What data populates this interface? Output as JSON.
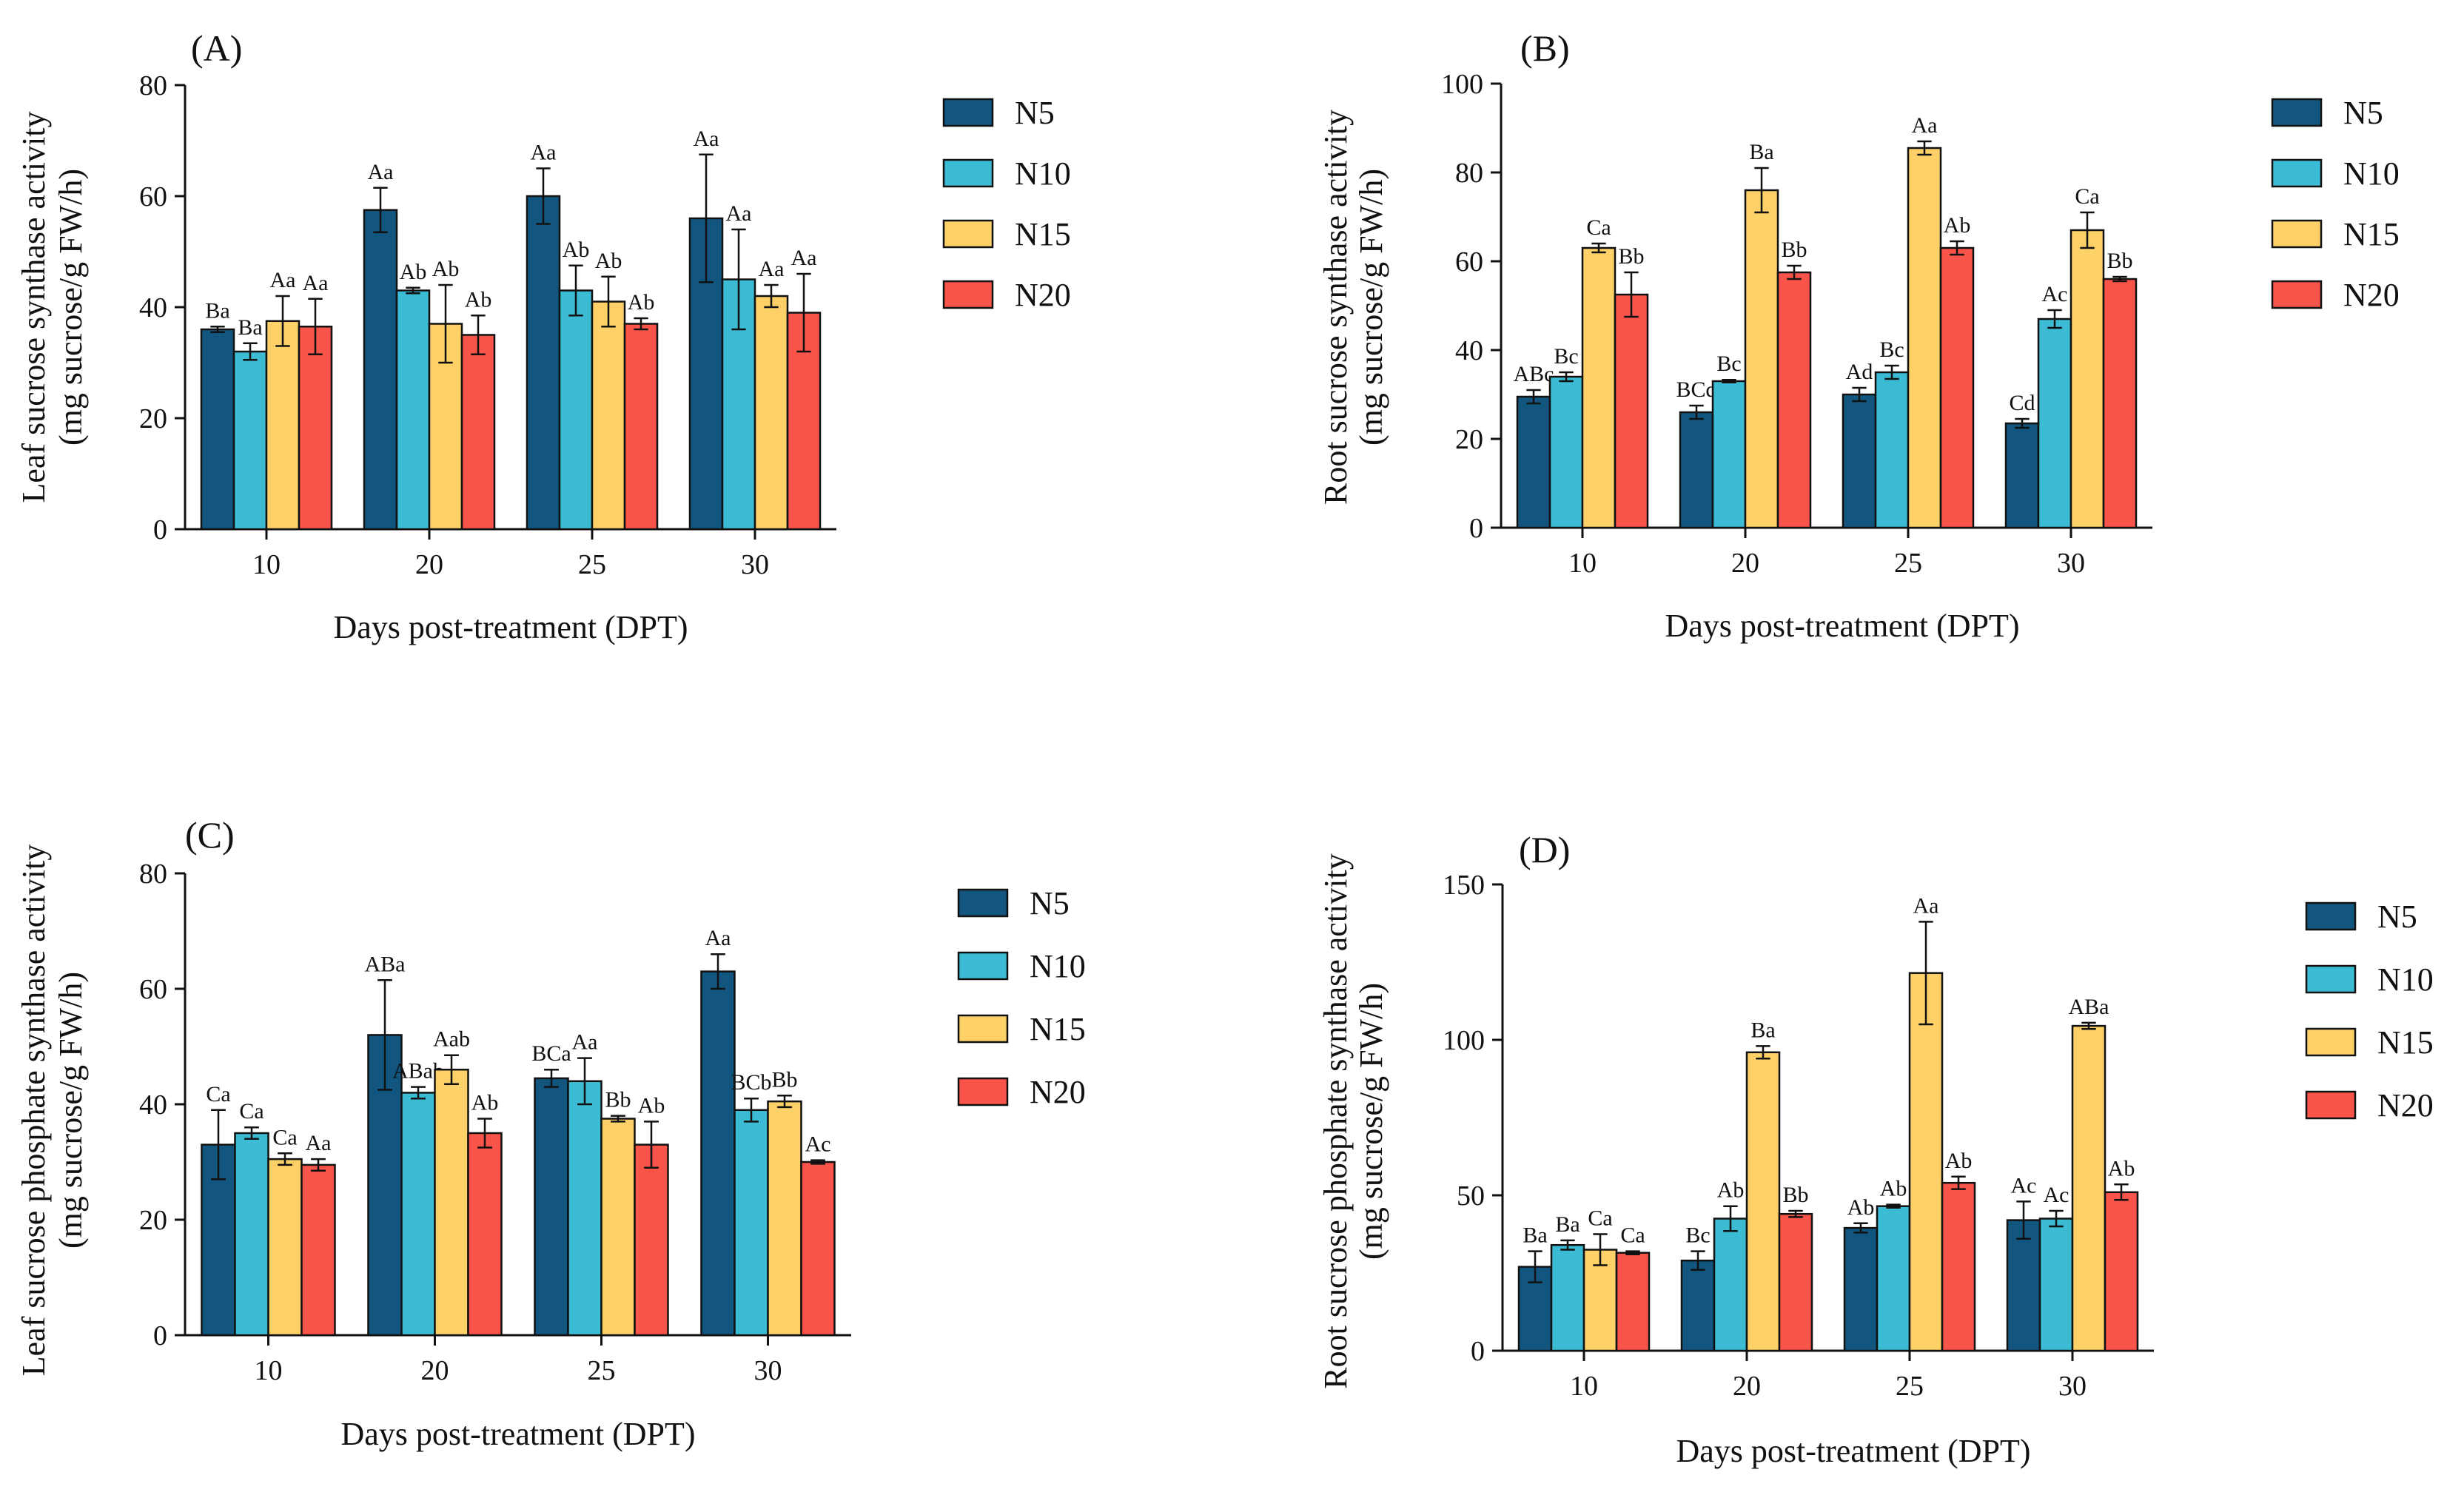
{
  "figure": {
    "series_colors": {
      "N5": "#125680",
      "N10": "#3cbcd4",
      "N15": "#fdd167",
      "N20": "#f9544a"
    },
    "axis_color": "#111111"
  },
  "chart_data": [
    {
      "id": "A",
      "type": "bar",
      "panel_label": "(A)",
      "xlabel": "Days post-treatment (DPT)",
      "ylabel": [
        "Leaf sucrose synthase activity",
        "(mg sucrose/g FW/h)"
      ],
      "ylim": [
        0,
        80
      ],
      "yticks": [
        0,
        20,
        40,
        60,
        80
      ],
      "categories": [
        "10",
        "20",
        "25",
        "30"
      ],
      "legend": [
        "N5",
        "N10",
        "N15",
        "N20"
      ],
      "series": [
        {
          "name": "N5",
          "values": [
            36,
            57.5,
            60,
            56
          ],
          "errors": [
            0.5,
            4,
            5,
            11.5
          ],
          "labels": [
            "Ba",
            "Aa",
            "Aa",
            "Aa"
          ]
        },
        {
          "name": "N10",
          "values": [
            32,
            43,
            43,
            45
          ],
          "errors": [
            1.5,
            0.5,
            4.5,
            9
          ],
          "labels": [
            "Ba",
            "Ab",
            "Ab",
            "Aa"
          ]
        },
        {
          "name": "N15",
          "values": [
            37.5,
            37,
            41,
            42
          ],
          "errors": [
            4.5,
            7,
            4.5,
            2
          ],
          "labels": [
            "Aa",
            "Ab",
            "Ab",
            "Aa"
          ]
        },
        {
          "name": "N20",
          "values": [
            36.5,
            35,
            37,
            39
          ],
          "errors": [
            5,
            3.5,
            1,
            7
          ],
          "labels": [
            "Aa",
            "Ab",
            "Ab",
            "Aa"
          ]
        }
      ]
    },
    {
      "id": "B",
      "type": "bar",
      "panel_label": "(B)",
      "xlabel": "Days post-treatment (DPT)",
      "ylabel": [
        "Root sucrose synthase activity",
        "(mg sucrose/g FW/h)"
      ],
      "ylim": [
        0,
        100
      ],
      "yticks": [
        0,
        20,
        40,
        60,
        80,
        100
      ],
      "categories": [
        "10",
        "20",
        "25",
        "30"
      ],
      "legend": [
        "N5",
        "N10",
        "N15",
        "N20"
      ],
      "series": [
        {
          "name": "N5",
          "values": [
            29.5,
            26,
            30,
            23.5
          ],
          "errors": [
            1.5,
            1.5,
            1.5,
            1
          ],
          "labels": [
            "ABc",
            "BCd",
            "Ad",
            "Cd"
          ]
        },
        {
          "name": "N10",
          "values": [
            34,
            33,
            35,
            47
          ],
          "errors": [
            1,
            0.3,
            1.5,
            2
          ],
          "labels": [
            "Bc",
            "Bc",
            "Bc",
            "Ac"
          ]
        },
        {
          "name": "N15",
          "values": [
            63,
            76,
            85.5,
            67
          ],
          "errors": [
            1,
            5,
            1.5,
            4
          ],
          "labels": [
            "Ca",
            "Ba",
            "Aa",
            "Ca"
          ]
        },
        {
          "name": "N20",
          "values": [
            52.5,
            57.5,
            63,
            56
          ],
          "errors": [
            5,
            1.5,
            1.5,
            0.5
          ],
          "labels": [
            "Bb",
            "Bb",
            "Ab",
            "Bb"
          ]
        }
      ]
    },
    {
      "id": "C",
      "type": "bar",
      "panel_label": "(C)",
      "xlabel": "Days post-treatment (DPT)",
      "ylabel": [
        "Leaf sucrose phosphate synthase activity",
        "(mg sucrose/g FW/h)"
      ],
      "ylim": [
        0,
        80
      ],
      "yticks": [
        0,
        20,
        40,
        60,
        80
      ],
      "categories": [
        "10",
        "20",
        "25",
        "30"
      ],
      "legend": [
        "N5",
        "N10",
        "N15",
        "N20"
      ],
      "series": [
        {
          "name": "N5",
          "values": [
            33,
            52,
            44.5,
            63
          ],
          "errors": [
            6,
            9.5,
            1.5,
            3
          ],
          "labels": [
            "Ca",
            "ABa",
            "BCa",
            "Aa"
          ]
        },
        {
          "name": "N10",
          "values": [
            35,
            42,
            44,
            39
          ],
          "errors": [
            1,
            1,
            4,
            2
          ],
          "labels": [
            "Ca",
            "ABab",
            "Aa",
            "BCb"
          ]
        },
        {
          "name": "N15",
          "values": [
            30.5,
            46,
            37.5,
            40.5
          ],
          "errors": [
            1,
            2.5,
            0.5,
            1
          ],
          "labels": [
            "Ca",
            "Aab",
            "Bb",
            "Bb"
          ]
        },
        {
          "name": "N20",
          "values": [
            29.5,
            35,
            33,
            30
          ],
          "errors": [
            1,
            2.5,
            4,
            0.3
          ],
          "labels": [
            "Aa",
            "Ab",
            "Ab",
            "Ac"
          ]
        }
      ]
    },
    {
      "id": "D",
      "type": "bar",
      "panel_label": "(D)",
      "xlabel": "Days post-treatment (DPT)",
      "ylabel": [
        "Root sucrose phosphate synthase activity",
        "(mg sucrose/g FW/h)"
      ],
      "ylim": [
        0,
        150
      ],
      "yticks": [
        0,
        50,
        100,
        150
      ],
      "categories": [
        "10",
        "20",
        "25",
        "30"
      ],
      "legend": [
        "N5",
        "N10",
        "N15",
        "N20"
      ],
      "series": [
        {
          "name": "N5",
          "values": [
            27,
            29,
            39.5,
            42
          ],
          "errors": [
            5,
            3,
            1.5,
            6
          ],
          "labels": [
            "Ba",
            "Bc",
            "Ab",
            "Ac"
          ]
        },
        {
          "name": "N10",
          "values": [
            34,
            42.5,
            46.5,
            42.5
          ],
          "errors": [
            1.5,
            4,
            0.5,
            2.5
          ],
          "labels": [
            "Ba",
            "Ab",
            "Ab",
            "Ac"
          ]
        },
        {
          "name": "N15",
          "values": [
            32.5,
            96,
            121.5,
            104.5
          ],
          "errors": [
            5,
            2,
            16.5,
            1
          ],
          "labels": [
            "Ca",
            "Ba",
            "Aa",
            "ABa"
          ]
        },
        {
          "name": "N20",
          "values": [
            31.5,
            44,
            54,
            51
          ],
          "errors": [
            0.5,
            1,
            2,
            2.5
          ],
          "labels": [
            "Ca",
            "Bb",
            "Ab",
            "Ab"
          ]
        }
      ]
    }
  ]
}
